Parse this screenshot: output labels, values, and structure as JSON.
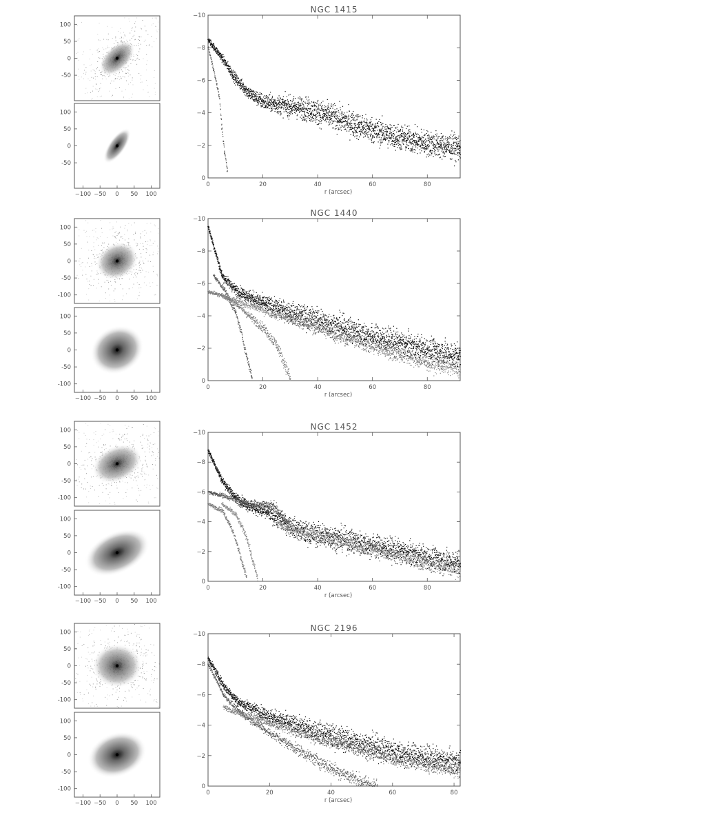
{
  "figure": {
    "panels": [
      {
        "title": "NGC 1415",
        "xlabel": "r (arcsec)"
      },
      {
        "title": "NGC 1440",
        "xlabel": "r (arcsec)"
      },
      {
        "title": "NGC 1452",
        "xlabel": "r (arcsec)"
      },
      {
        "title": "NGC 2196",
        "xlabel": "r (arcsec)"
      }
    ]
  },
  "chart_data": [
    {
      "type": "scatter",
      "title": "NGC 1415",
      "xlabel": "r (arcsec)",
      "ylabel": "",
      "xlim": [
        0,
        92
      ],
      "ylim": [
        0,
        10
      ],
      "y_inverted": true,
      "xticks": [
        0,
        20,
        40,
        60,
        80
      ],
      "yticks": [
        10,
        8,
        6,
        4,
        2,
        0
      ],
      "image_panels": {
        "xticks": [
          -100,
          -50,
          0,
          50,
          100
        ],
        "yticks_top": [
          100,
          50,
          0,
          -50
        ],
        "yticks_bottom": [
          100,
          50,
          0,
          -50
        ]
      },
      "series": [
        {
          "values": [
            [
              0,
              8.5
            ],
            [
              5,
              7.4
            ],
            [
              10,
              6.1
            ],
            [
              15,
              5.2
            ],
            [
              20,
              4.7
            ],
            [
              30,
              4.4
            ],
            [
              35,
              4.3
            ],
            [
              45,
              3.8
            ],
            [
              55,
              3.2
            ],
            [
              65,
              2.7
            ],
            [
              75,
              2.3
            ],
            [
              85,
              2.0
            ],
            [
              92,
              1.9
            ]
          ]
        },
        {
          "values": [
            [
              0,
              8.0
            ],
            [
              2,
              6.6
            ],
            [
              4,
              5.0
            ],
            [
              5,
              3.0
            ],
            [
              6,
              1.5
            ],
            [
              7,
              0.4
            ]
          ]
        }
      ]
    },
    {
      "type": "scatter",
      "title": "NGC 1440",
      "xlabel": "r (arcsec)",
      "ylabel": "",
      "xlim": [
        0,
        92
      ],
      "ylim": [
        0,
        10
      ],
      "y_inverted": true,
      "xticks": [
        0,
        20,
        40,
        60,
        80
      ],
      "yticks": [
        10,
        8,
        6,
        4,
        2,
        0
      ],
      "image_panels": {
        "xticks": [
          -100,
          -50,
          0,
          50,
          100
        ],
        "yticks_top": [
          100,
          50,
          0,
          -50,
          -100
        ],
        "yticks_bottom": [
          100,
          50,
          0,
          -50,
          -100
        ]
      },
      "series": [
        {
          "values": [
            [
              0,
              9.5
            ],
            [
              5,
              6.5
            ],
            [
              10,
              5.6
            ],
            [
              20,
              4.8
            ],
            [
              30,
              4.2
            ],
            [
              40,
              3.7
            ],
            [
              50,
              3.2
            ],
            [
              60,
              2.7
            ],
            [
              70,
              2.3
            ],
            [
              80,
              1.9
            ],
            [
              92,
              1.5
            ]
          ]
        },
        {
          "values": [
            [
              2,
              6.5
            ],
            [
              6,
              5.6
            ],
            [
              10,
              4.2
            ],
            [
              12,
              3.0
            ],
            [
              14,
              1.5
            ],
            [
              16,
              0.2
            ]
          ]
        },
        {
          "values": [
            [
              0,
              5.5
            ],
            [
              5,
              5.3
            ],
            [
              10,
              4.8
            ],
            [
              15,
              4.0
            ],
            [
              20,
              3.3
            ],
            [
              25,
              2.2
            ],
            [
              28,
              1.0
            ],
            [
              30,
              0.1
            ]
          ]
        },
        {
          "values": [
            [
              5,
              5.2
            ],
            [
              20,
              4.4
            ],
            [
              40,
              3.3
            ],
            [
              60,
              2.1
            ],
            [
              80,
              1.1
            ],
            [
              92,
              0.7
            ]
          ]
        }
      ]
    },
    {
      "type": "scatter",
      "title": "NGC 1452",
      "xlabel": "r (arcsec)",
      "ylabel": "",
      "xlim": [
        0,
        92
      ],
      "ylim": [
        0,
        10
      ],
      "y_inverted": true,
      "xticks": [
        0,
        20,
        40,
        60,
        80
      ],
      "yticks": [
        10,
        8,
        6,
        4,
        2,
        0
      ],
      "image_panels": {
        "xticks": [
          -100,
          -50,
          0,
          50,
          100
        ],
        "yticks_top": [
          100,
          50,
          0,
          -50,
          -100
        ],
        "yticks_bottom": [
          100,
          50,
          0,
          -50,
          -100
        ]
      },
      "series": [
        {
          "values": [
            [
              0,
              8.8
            ],
            [
              5,
              6.8
            ],
            [
              10,
              5.6
            ],
            [
              15,
              5.1
            ],
            [
              22,
              4.6
            ],
            [
              28,
              3.9
            ],
            [
              35,
              3.3
            ],
            [
              45,
              3.0
            ],
            [
              55,
              2.6
            ],
            [
              65,
              2.2
            ],
            [
              75,
              1.8
            ],
            [
              85,
              1.4
            ],
            [
              92,
              1.2
            ]
          ]
        },
        {
          "values": [
            [
              0,
              6.0
            ],
            [
              5,
              5.8
            ],
            [
              10,
              5.5
            ],
            [
              15,
              5.2
            ],
            [
              20,
              5.2
            ],
            [
              24,
              5.1
            ],
            [
              27,
              4.4
            ],
            [
              30,
              3.8
            ]
          ]
        },
        {
          "values": [
            [
              0,
              5.2
            ],
            [
              5,
              4.8
            ],
            [
              8,
              3.8
            ],
            [
              10,
              2.8
            ],
            [
              12,
              1.5
            ],
            [
              14,
              0.3
            ]
          ]
        },
        {
          "values": [
            [
              5,
              5.2
            ],
            [
              10,
              4.5
            ],
            [
              14,
              3.0
            ],
            [
              16,
              1.5
            ],
            [
              18,
              0.2
            ]
          ]
        },
        {
          "values": [
            [
              25,
              3.9
            ],
            [
              40,
              3.1
            ],
            [
              55,
              2.4
            ],
            [
              70,
              1.7
            ],
            [
              85,
              1.0
            ],
            [
              92,
              0.8
            ]
          ]
        }
      ]
    },
    {
      "type": "scatter",
      "title": "NGC 2196",
      "xlabel": "r (arcsec)",
      "ylabel": "",
      "xlim": [
        0,
        82
      ],
      "ylim": [
        0,
        10
      ],
      "y_inverted": true,
      "xticks": [
        0,
        20,
        40,
        60,
        80
      ],
      "yticks": [
        10,
        8,
        6,
        4,
        2,
        0
      ],
      "image_panels": {
        "xticks": [
          -100,
          -50,
          0,
          50,
          100
        ],
        "yticks_top": [
          100,
          50,
          0,
          -50,
          -100
        ],
        "yticks_bottom": [
          100,
          50,
          0,
          -50,
          -100
        ]
      },
      "series": [
        {
          "values": [
            [
              0,
              8.4
            ],
            [
              5,
              6.6
            ],
            [
              10,
              5.5
            ],
            [
              20,
              4.6
            ],
            [
              30,
              3.9
            ],
            [
              40,
              3.3
            ],
            [
              50,
              2.8
            ],
            [
              60,
              2.3
            ],
            [
              70,
              1.9
            ],
            [
              82,
              1.5
            ]
          ]
        },
        {
          "values": [
            [
              0,
              8.0
            ],
            [
              5,
              6.0
            ],
            [
              10,
              4.9
            ],
            [
              20,
              3.5
            ],
            [
              30,
              2.3
            ],
            [
              40,
              1.2
            ],
            [
              50,
              0.3
            ],
            [
              55,
              0.0
            ]
          ]
        },
        {
          "values": [
            [
              5,
              5.2
            ],
            [
              20,
              4.1
            ],
            [
              40,
              3.0
            ],
            [
              60,
              1.8
            ],
            [
              82,
              1.0
            ]
          ]
        }
      ]
    }
  ]
}
